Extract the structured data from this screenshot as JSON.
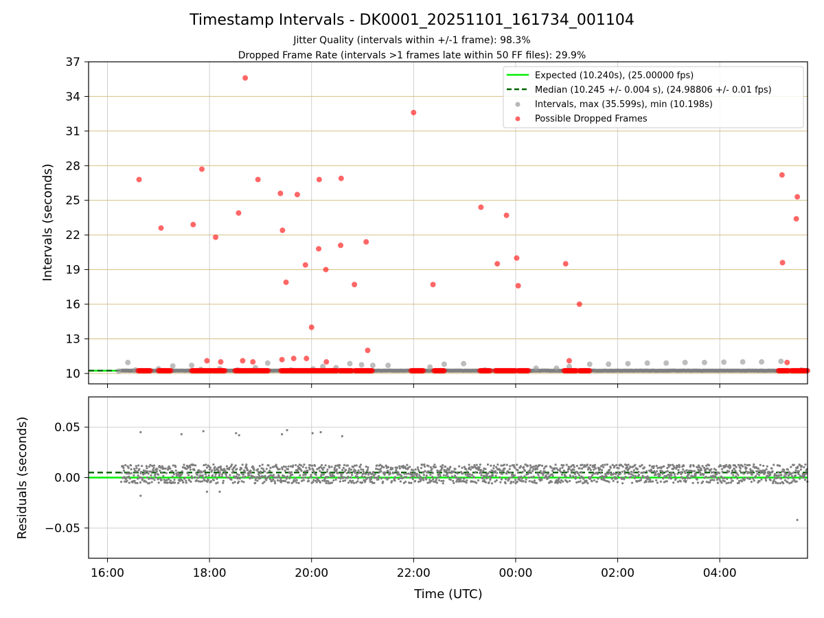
{
  "chart_data": [
    {
      "type": "scatter",
      "title": "Timestamp Intervals - DK0001_20251101_161734_001104",
      "subtitle": [
        "Jitter Quality (intervals within +/-1 frame): 98.3%",
        "Dropped Frame Rate (intervals >1 frames late within 50 FF files): 29.9%"
      ],
      "xlabel": "",
      "ylabel": "Intervals (seconds)",
      "xlim_hours": [
        15.63,
        29.72
      ],
      "ylim": [
        9.1,
        37
      ],
      "yticks": [
        10,
        13,
        16,
        19,
        22,
        25,
        28,
        31,
        34,
        37
      ],
      "ytick_labels": [
        "10",
        "13",
        "16",
        "19",
        "22",
        "25",
        "28",
        "31",
        "34",
        "37"
      ],
      "ygrid_color": "#d4bf80",
      "xgrid": true,
      "legend_position": "top-right",
      "legend": [
        "Expected (10.240s), (25.00000 fps)",
        "Median (10.245 +/- 0.004 s), (24.98806 +/- 0.01 fps)",
        "Intervals, max (35.599s), min (10.198s)",
        "Possible Dropped Frames"
      ],
      "expected": 10.24,
      "median": 10.245,
      "series": [
        {
          "name": "Intervals, max (35.599s), min (10.198s)",
          "color": "#999999",
          "x": [
            16.22,
            16.4,
            16.55,
            17.0,
            17.28,
            17.65,
            17.83,
            18.2,
            18.55,
            18.9,
            19.14,
            19.6,
            20.03,
            20.22,
            20.48,
            20.75,
            20.98,
            21.2,
            21.5,
            22.32,
            22.6,
            22.98,
            23.4,
            24.4,
            24.8,
            25.05,
            25.45,
            25.82,
            26.2,
            26.58,
            26.95,
            27.32,
            27.7,
            28.08,
            28.45,
            28.82,
            29.2,
            29.6
          ],
          "y": [
            10.2,
            10.95,
            10.3,
            10.4,
            10.65,
            10.7,
            10.35,
            10.4,
            10.3,
            10.5,
            10.9,
            10.3,
            10.4,
            10.6,
            10.5,
            10.85,
            10.75,
            10.7,
            10.7,
            10.55,
            10.8,
            10.85,
            10.3,
            10.45,
            10.45,
            10.6,
            10.8,
            10.8,
            10.85,
            10.9,
            10.9,
            10.95,
            10.95,
            10.98,
            11.0,
            11.0,
            11.05,
            10.3
          ]
        },
        {
          "name": "Possible Dropped Frames",
          "color": "#ff0000",
          "x": [
            16.62,
            17.05,
            17.68,
            17.85,
            17.95,
            18.12,
            18.22,
            18.57,
            18.65,
            18.7,
            18.85,
            18.95,
            19.39,
            19.42,
            19.43,
            19.5,
            19.65,
            19.72,
            19.88,
            19.9,
            20.0,
            20.14,
            20.15,
            20.28,
            20.29,
            20.57,
            20.58,
            20.84,
            21.07,
            21.1,
            22.0,
            22.38,
            23.32,
            23.64,
            23.82,
            24.02,
            24.05,
            24.98,
            25.05,
            25.25,
            29.22,
            29.23,
            29.32,
            29.5,
            29.52
          ],
          "y": [
            26.8,
            22.6,
            22.9,
            27.7,
            11.1,
            21.8,
            11.0,
            23.9,
            11.1,
            35.6,
            11.0,
            26.8,
            25.6,
            11.2,
            22.4,
            17.9,
            11.3,
            25.5,
            19.4,
            11.3,
            14.0,
            20.8,
            26.8,
            19.0,
            11.0,
            21.1,
            26.9,
            17.7,
            21.4,
            12.0,
            32.6,
            17.7,
            24.4,
            19.5,
            23.7,
            20.0,
            17.6,
            19.5,
            11.1,
            16.0,
            27.2,
            19.6,
            10.95,
            23.4,
            25.3
          ],
          "clusters": [
            [
              16.6,
              16.85
            ],
            [
              17.0,
              17.25
            ],
            [
              17.65,
              18.05
            ],
            [
              18.08,
              18.3
            ],
            [
              18.5,
              18.9
            ],
            [
              18.93,
              19.15
            ],
            [
              19.4,
              20.5
            ],
            [
              20.55,
              20.8
            ],
            [
              20.85,
              21.2
            ],
            [
              21.95,
              22.2
            ],
            [
              22.4,
              22.6
            ],
            [
              23.3,
              23.5
            ],
            [
              23.6,
              24.0
            ],
            [
              24.05,
              24.25
            ],
            [
              24.95,
              25.2
            ],
            [
              25.25,
              25.45
            ],
            [
              29.15,
              29.35
            ],
            [
              29.4,
              29.72
            ]
          ]
        }
      ]
    },
    {
      "type": "scatter",
      "title": "",
      "xlabel": "Time (UTC)",
      "ylabel": "Residuals (seconds)",
      "xlim_hours": [
        15.63,
        29.72
      ],
      "xticks_hours": [
        16,
        18,
        20,
        22,
        24,
        26,
        28
      ],
      "xtick_labels": [
        "16:00",
        "18:00",
        "20:00",
        "22:00",
        "00:00",
        "02:00",
        "04:00"
      ],
      "ylim": [
        -0.08,
        0.08
      ],
      "yticks": [
        -0.05,
        0.0,
        0.05
      ],
      "ytick_labels": [
        "−0.05",
        "0.00",
        "0.05"
      ],
      "grid": true,
      "expected_residual": 0.0,
      "median_residual": 0.005,
      "series": [
        {
          "name": "Residuals",
          "color": "#7f7f7f",
          "x_range": [
            16.27,
            29.72
          ],
          "band": [
            -0.009,
            0.013
          ],
          "outliers_x": [
            16.65,
            17.45,
            17.88,
            18.52,
            18.58,
            19.42,
            19.52,
            20.02,
            20.18,
            20.6,
            16.65,
            17.95,
            18.2,
            29.52
          ],
          "outliers_y": [
            0.045,
            0.043,
            0.046,
            0.044,
            0.042,
            0.043,
            0.047,
            0.044,
            0.045,
            0.041,
            -0.018,
            -0.014,
            -0.014,
            -0.042
          ]
        }
      ]
    }
  ]
}
